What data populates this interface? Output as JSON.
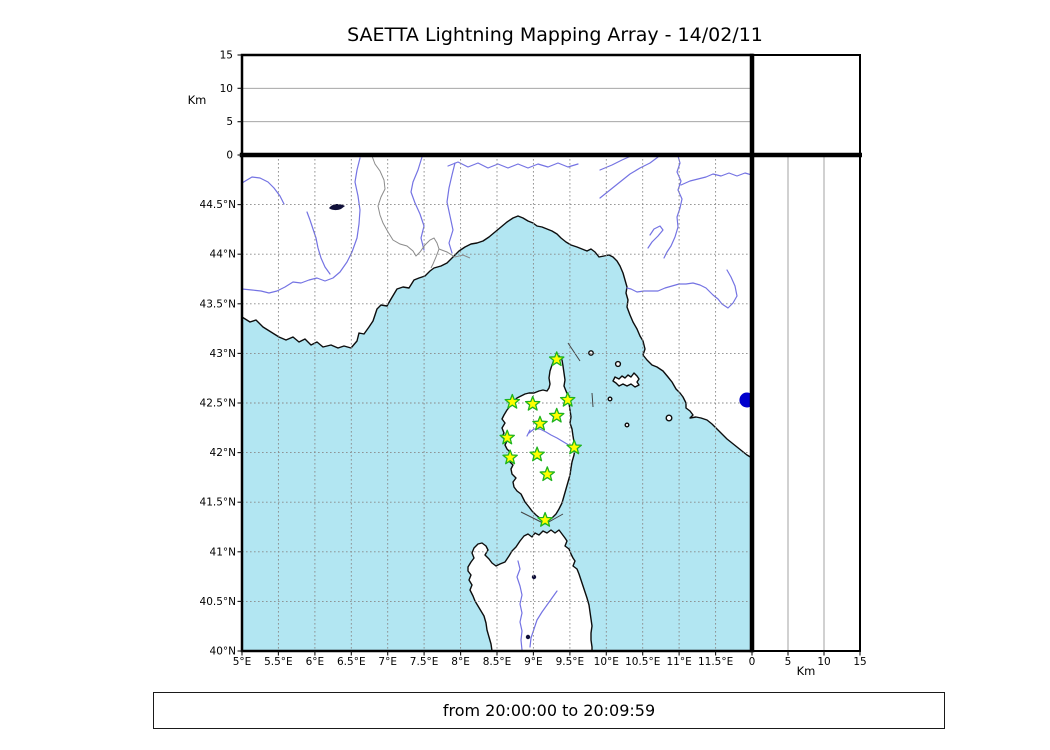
{
  "title": "SAETTA Lightning Mapping Array - 14/02/11",
  "footer": {
    "text": "from 20:00:00 to 20:09:59"
  },
  "altitude_panel": {
    "axis_label": "Km",
    "tick_values": [
      0,
      5,
      10,
      15
    ],
    "range_km": [
      0,
      15
    ]
  },
  "right_panel": {
    "axis_label": "Km",
    "tick_values": [
      0,
      5,
      10,
      15
    ],
    "range_km": [
      0,
      15
    ]
  },
  "map_panel": {
    "lon_range": [
      5,
      12
    ],
    "lat_range": [
      40,
      45
    ],
    "lon_tick_values": [
      5,
      5.5,
      6,
      6.5,
      7,
      7.5,
      8,
      8.5,
      9,
      9.5,
      10,
      10.5,
      11,
      11.5
    ],
    "lon_tick_labels": [
      "5°E",
      "5.5°E",
      "6°E",
      "6.5°E",
      "7°E",
      "7.5°E",
      "8°E",
      "8.5°E",
      "9°E",
      "9.5°E",
      "10°E",
      "10.5°E",
      "11°E",
      "11.5°E"
    ],
    "lat_tick_values": [
      44.5,
      44,
      43.5,
      43,
      42.5,
      42,
      41.5,
      41,
      40.5,
      40
    ],
    "lat_tick_labels": [
      "44.5°N",
      "44°N",
      "43.5°N",
      "43°N",
      "42.5°N",
      "42°N",
      "41.5°N",
      "41°N",
      "40.5°N",
      "40°N"
    ],
    "stations": [
      {
        "lon": 9.32,
        "lat": 42.94
      },
      {
        "lon": 8.71,
        "lat": 42.51
      },
      {
        "lon": 8.99,
        "lat": 42.49
      },
      {
        "lon": 9.47,
        "lat": 42.53
      },
      {
        "lon": 9.32,
        "lat": 42.37
      },
      {
        "lon": 9.09,
        "lat": 42.29
      },
      {
        "lon": 8.64,
        "lat": 42.15
      },
      {
        "lon": 9.56,
        "lat": 42.05
      },
      {
        "lon": 9.05,
        "lat": 41.98
      },
      {
        "lon": 8.68,
        "lat": 41.95
      },
      {
        "lon": 9.19,
        "lat": 41.78
      },
      {
        "lon": 9.16,
        "lat": 41.32
      }
    ],
    "lake_dot": {
      "lon": 11.93,
      "lat": 42.53
    },
    "colors": {
      "sea": "#b2e6f2",
      "land": "#ffffff",
      "river": "#7473e3",
      "border": "#8c8c8c",
      "grid": "#898989",
      "star_fill": "#ffff00",
      "star_stroke": "#1eb41e",
      "lake_dot": "#0000cd"
    }
  }
}
